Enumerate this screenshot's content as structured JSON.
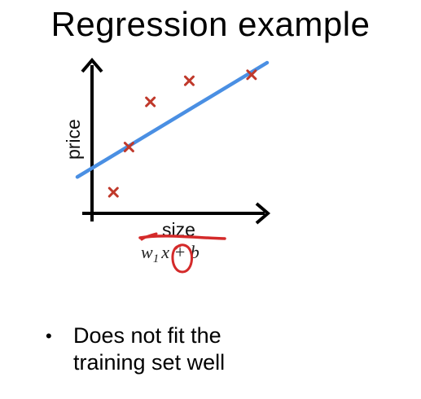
{
  "slide": {
    "title": "Regression example",
    "bullets": [
      "Does not fit the training set well"
    ]
  },
  "figure": {
    "xlabel": "size",
    "ylabel": "price",
    "model": {
      "w": "w",
      "sub": "1",
      "x": "x",
      "rest": " + b"
    },
    "points": [
      {
        "x": 1.1,
        "y": 0.7
      },
      {
        "x": 1.9,
        "y": 2.2
      },
      {
        "x": 3.0,
        "y": 3.7
      },
      {
        "x": 5.0,
        "y": 4.4
      },
      {
        "x": 8.2,
        "y": 4.6
      }
    ],
    "fit_line": {
      "x": [
        0,
        9.0
      ],
      "y": [
        1.45,
        5.0
      ]
    },
    "domain": {
      "x": [
        0,
        9.0
      ],
      "y": [
        0,
        5.0
      ]
    },
    "colors": {
      "points": "#c0392b",
      "fit_line": "#4a8fe3",
      "axes": "#000000",
      "annotation": "#d42a2a"
    }
  }
}
